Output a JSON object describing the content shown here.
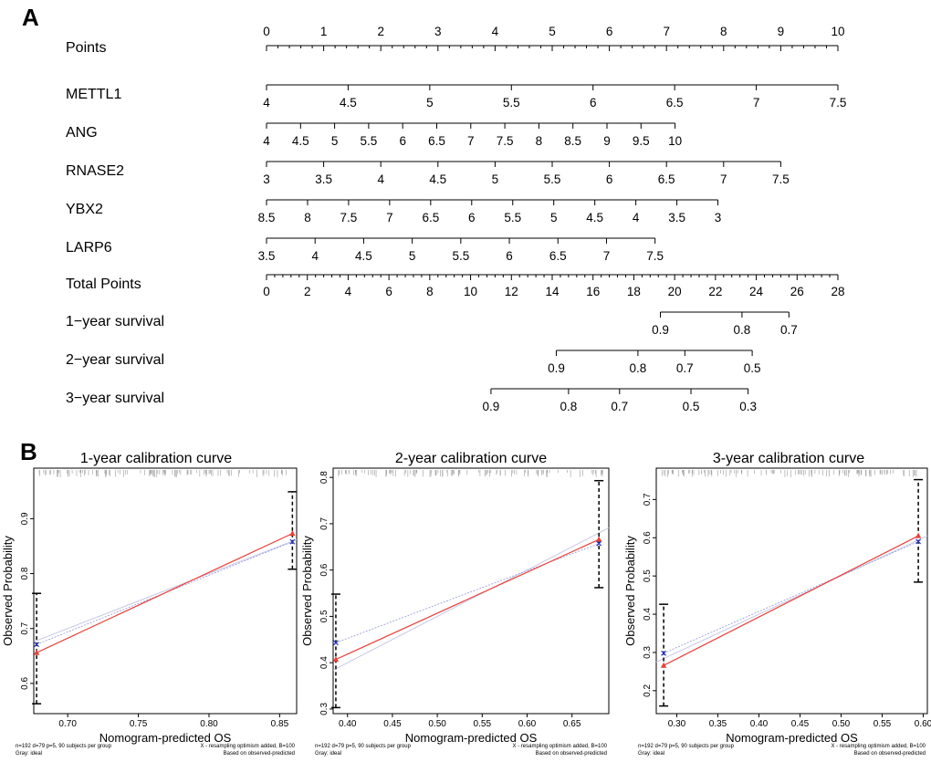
{
  "panel_labels": {
    "a": "A",
    "b": "B"
  },
  "chart_data": [
    {
      "type": "nomogram",
      "panel": "A",
      "rows": [
        {
          "label": "Points",
          "kind": "points",
          "ticks": [
            0,
            1,
            2,
            3,
            4,
            5,
            6,
            7,
            8,
            9,
            10
          ],
          "tick_labels": [
            "0",
            "1",
            "2",
            "3",
            "4",
            "5",
            "6",
            "7",
            "8",
            "9",
            "10"
          ],
          "labels_above": true
        },
        {
          "label": "METTL1",
          "kind": "var",
          "values": [
            4,
            4.5,
            5,
            5.5,
            6,
            6.5,
            7,
            7.5
          ],
          "tick_labels": [
            "4",
            "4.5",
            "5",
            "5.5",
            "6",
            "6.5",
            "7",
            "7.5"
          ],
          "points_range": [
            0,
            10
          ]
        },
        {
          "label": "ANG",
          "kind": "var",
          "values": [
            4,
            4.5,
            5,
            5.5,
            6,
            6.5,
            7,
            7.5,
            8,
            8.5,
            9,
            9.5,
            10
          ],
          "tick_labels": [
            "4",
            "4.5",
            "5",
            "5.5",
            "6",
            "6.5",
            "7",
            "7.5",
            "8",
            "8.5",
            "9",
            "9.5",
            "10"
          ],
          "points_range": [
            0,
            7.15
          ]
        },
        {
          "label": "RNASE2",
          "kind": "var",
          "values": [
            3,
            3.5,
            4,
            4.5,
            5,
            5.5,
            6,
            6.5,
            7,
            7.5
          ],
          "tick_labels": [
            "3",
            "3.5",
            "4",
            "4.5",
            "5",
            "5.5",
            "6",
            "6.5",
            "7",
            "7.5"
          ],
          "points_range": [
            0,
            9
          ]
        },
        {
          "label": "YBX2",
          "kind": "var",
          "values": [
            8.5,
            8,
            7.5,
            7,
            6.5,
            6,
            5.5,
            5,
            4.5,
            4,
            3.5,
            3
          ],
          "tick_labels": [
            "8.5",
            "8",
            "7.5",
            "7",
            "6.5",
            "6",
            "5.5",
            "5",
            "4.5",
            "4",
            "3.5",
            "3"
          ],
          "points_range": [
            0,
            7.9
          ]
        },
        {
          "label": "LARP6",
          "kind": "var",
          "values": [
            3.5,
            4,
            4.5,
            5,
            5.5,
            6,
            6.5,
            7,
            7.5
          ],
          "tick_labels": [
            "3.5",
            "4",
            "4.5",
            "5",
            "5.5",
            "6",
            "6.5",
            "7",
            "7.5"
          ],
          "points_range": [
            0,
            6.8
          ]
        },
        {
          "label": "Total Points",
          "kind": "total",
          "ticks": [
            0,
            2,
            4,
            6,
            8,
            10,
            12,
            14,
            16,
            18,
            20,
            22,
            24,
            26,
            28
          ],
          "tick_labels": [
            "0",
            "2",
            "4",
            "6",
            "8",
            "10",
            "12",
            "14",
            "16",
            "18",
            "20",
            "22",
            "24",
            "26",
            "28"
          ]
        },
        {
          "label": "1−year survival",
          "kind": "surv",
          "ticks_total": [
            19.3,
            23.3,
            25.6
          ],
          "tick_labels": [
            "0.9",
            "0.8",
            "0.7"
          ]
        },
        {
          "label": "2−year survival",
          "kind": "surv",
          "ticks_total": [
            14.2,
            18.2,
            20.5,
            23.8
          ],
          "tick_labels": [
            "0.9",
            "0.8",
            "0.7",
            "0.5"
          ]
        },
        {
          "label": "3−year survival",
          "kind": "surv",
          "ticks_total": [
            11,
            14.8,
            17.3,
            20.8,
            23.6
          ],
          "tick_labels": [
            "0.9",
            "0.8",
            "0.7",
            "0.5",
            "0.3"
          ]
        }
      ]
    },
    {
      "type": "scatter",
      "panel": "B",
      "title": "1-year calibration curve",
      "xlabel": "Nomogram-predicted OS",
      "ylabel": "Observed Probability",
      "xlim": [
        0.676,
        0.862
      ],
      "ylim": [
        0.545,
        0.992
      ],
      "xticks": [
        0.7,
        0.75,
        0.8,
        0.85
      ],
      "xtick_labels": [
        "0.70",
        "0.75",
        "0.80",
        "0.85"
      ],
      "yticks": [
        0.6,
        0.7,
        0.8,
        0.9
      ],
      "ytick_labels": [
        "0.6",
        "0.7",
        "0.8",
        "0.9"
      ],
      "predicted": [
        0.678,
        0.859
      ],
      "observed": [
        0.656,
        0.873
      ],
      "corrected": [
        0.671,
        0.858
      ],
      "ci_low": [
        0.563,
        0.808
      ],
      "ci_high": [
        0.764,
        0.949
      ],
      "footnote_left": [
        "n=192 d=79 p=5, 90 subjects per group",
        "Gray: ideal"
      ],
      "footnote_right": [
        "X - resampling optimism added, B=100",
        "Based on observed-predicted"
      ]
    },
    {
      "type": "scatter",
      "panel": "B",
      "title": "2-year calibration curve",
      "xlabel": "Nomogram-predicted OS",
      "ylabel": "Observed Probability",
      "xlim": [
        0.384,
        0.691
      ],
      "ylim": [
        0.29,
        0.82
      ],
      "xticks": [
        0.4,
        0.45,
        0.5,
        0.55,
        0.6,
        0.65
      ],
      "xtick_labels": [
        "0.40",
        "0.45",
        "0.50",
        "0.55",
        "0.60",
        "0.65"
      ],
      "yticks": [
        0.3,
        0.4,
        0.5,
        0.6,
        0.7,
        0.8
      ],
      "ytick_labels": [
        "0.3",
        "0.4",
        "0.5",
        "0.6",
        "0.7",
        "0.8"
      ],
      "predicted": [
        0.387,
        0.68
      ],
      "observed": [
        0.407,
        0.666
      ],
      "corrected": [
        0.443,
        0.657
      ],
      "ci_low": [
        0.303,
        0.562
      ],
      "ci_high": [
        0.548,
        0.793
      ],
      "footnote_left": [
        "n=192 d=79 p=5, 90 subjects per group",
        "Gray: ideal"
      ],
      "footnote_right": [
        "X - resampling optimism added, B=100",
        "Based on observed-predicted"
      ]
    },
    {
      "type": "scatter",
      "panel": "B",
      "title": "3-year calibration curve",
      "xlabel": "Nomogram-predicted OS",
      "ylabel": "Observed Probability",
      "xlim": [
        0.275,
        0.605
      ],
      "ylim": [
        0.14,
        0.782
      ],
      "xticks": [
        0.3,
        0.35,
        0.4,
        0.45,
        0.5,
        0.55,
        0.6
      ],
      "xtick_labels": [
        "0.30",
        "0.35",
        "0.40",
        "0.45",
        "0.50",
        "0.55",
        "0.60"
      ],
      "yticks": [
        0.2,
        0.3,
        0.4,
        0.5,
        0.6,
        0.7
      ],
      "ytick_labels": [
        "0.2",
        "0.3",
        "0.4",
        "0.5",
        "0.6",
        "0.7"
      ],
      "predicted": [
        0.284,
        0.594
      ],
      "observed": [
        0.266,
        0.605
      ],
      "corrected": [
        0.298,
        0.59
      ],
      "ci_low": [
        0.16,
        0.484
      ],
      "ci_high": [
        0.426,
        0.752
      ],
      "footnote_left": [
        "n=192 d=79 p=5, 90 subjects per group",
        "Gray: ideal"
      ],
      "footnote_right": [
        "X - resampling optimism added, B=100",
        "Based on observed-predicted"
      ]
    }
  ],
  "colors": {
    "apparent": "#e8413a",
    "bias_corrected": "#2a37c9",
    "ideal": "#c6c8e4",
    "axis": "#000000",
    "ci": "#000000"
  }
}
